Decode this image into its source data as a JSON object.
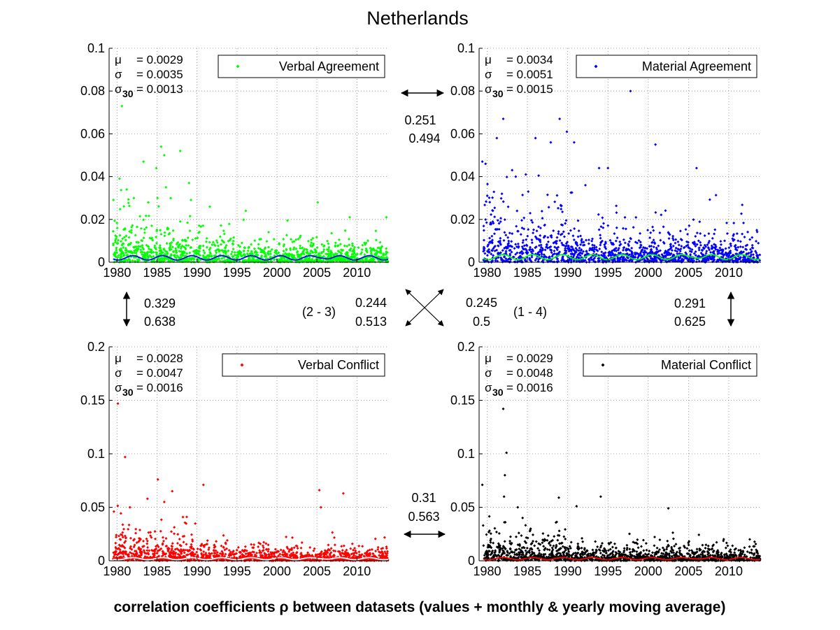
{
  "figure": {
    "title": "Netherlands",
    "caption": "correlation coefficients ρ between datasets (values + monthly & yearly moving average)"
  },
  "chart_data": [
    {
      "id": "verbal-agreement",
      "type": "scatter",
      "legend": "Verbal Agreement",
      "color": "#00ff00",
      "avg_color": "#0000ff",
      "ylim": [
        0,
        0.1
      ],
      "yticks": [
        "0",
        "0.02",
        "0.04",
        "0.06",
        "0.08",
        "0.1"
      ],
      "ytick_values": [
        0,
        0.02,
        0.04,
        0.06,
        0.08,
        0.1
      ],
      "xlim": [
        1979,
        2014
      ],
      "xticks": [
        "1980",
        "1985",
        "1990",
        "1995",
        "2000",
        "2005",
        "2010"
      ],
      "xtick_values": [
        1980,
        1985,
        1990,
        1995,
        2000,
        2005,
        2010
      ],
      "stats": {
        "mu_label": "μ",
        "mu": "= 0.0029",
        "sigma_label": "σ",
        "sigma": "= 0.0035",
        "sigma30_label": "σ",
        "sigma30_sub": "30",
        "sigma30": "= 0.0013"
      },
      "outliers": [
        [
          1980.6,
          0.073
        ],
        [
          1980.3,
          0.039
        ],
        [
          1981.2,
          0.034
        ],
        [
          1983.3,
          0.047
        ],
        [
          1984.9,
          0.044
        ],
        [
          1985.5,
          0.054
        ],
        [
          1985.9,
          0.05
        ],
        [
          1986.1,
          0.035
        ],
        [
          1987.9,
          0.052
        ],
        [
          1989.0,
          0.037
        ],
        [
          1982.1,
          0.03
        ],
        [
          1983.9,
          0.028
        ],
        [
          1986.7,
          0.03
        ],
        [
          1991.6,
          0.026
        ],
        [
          1996.1,
          0.024
        ],
        [
          2005.1,
          0.028
        ],
        [
          2009.1,
          0.021
        ],
        [
          2013.7,
          0.021
        ]
      ],
      "mean": 0.0029,
      "sigma": 0.0035
    },
    {
      "id": "material-agreement",
      "type": "scatter",
      "legend": "Material Agreement",
      "color": "#0000ff",
      "avg_color": "#00ff00",
      "ylim": [
        0,
        0.1
      ],
      "yticks": [
        "0",
        "0.02",
        "0.04",
        "0.06",
        "0.08",
        "0.1"
      ],
      "ytick_values": [
        0,
        0.02,
        0.04,
        0.06,
        0.08,
        0.1
      ],
      "xlim": [
        1979,
        2014
      ],
      "xticks": [
        "1980",
        "1985",
        "1990",
        "1995",
        "2000",
        "2005",
        "2010"
      ],
      "xtick_values": [
        1980,
        1985,
        1990,
        1995,
        2000,
        2005,
        2010
      ],
      "stats": {
        "mu_label": "μ",
        "mu": "= 0.0034",
        "sigma_label": "σ",
        "sigma": "= 0.0051",
        "sigma30_label": "σ",
        "sigma30_sub": "30",
        "sigma30": "= 0.0015"
      },
      "outliers": [
        [
          1997.8,
          0.08
        ],
        [
          1982.0,
          0.067
        ],
        [
          1989.0,
          0.067
        ],
        [
          1989.9,
          0.061
        ],
        [
          1981.2,
          0.058
        ],
        [
          1986.0,
          0.058
        ],
        [
          1987.9,
          0.056
        ],
        [
          1990.8,
          0.056
        ],
        [
          2000.9,
          0.055
        ],
        [
          1979.4,
          0.047
        ],
        [
          1979.8,
          0.046
        ],
        [
          1983.1,
          0.043
        ],
        [
          1984.8,
          0.041
        ],
        [
          1993.9,
          0.044
        ],
        [
          1995.0,
          0.044
        ],
        [
          2006.0,
          0.044
        ],
        [
          1992.2,
          0.036
        ],
        [
          1985.1,
          0.033
        ]
      ],
      "mean": 0.0034,
      "sigma": 0.0051
    },
    {
      "id": "verbal-conflict",
      "type": "scatter",
      "legend": "Verbal Conflict",
      "color": "#ff0000",
      "avg_color": "#ffffff",
      "ylim": [
        0,
        0.2
      ],
      "yticks": [
        "0",
        "0.05",
        "0.1",
        "0.15",
        "0.2"
      ],
      "ytick_values": [
        0,
        0.05,
        0.1,
        0.15,
        0.2
      ],
      "xlim": [
        1979,
        2014
      ],
      "xticks": [
        "1980",
        "1985",
        "1990",
        "1995",
        "2000",
        "2005",
        "2010"
      ],
      "xtick_values": [
        1980,
        1985,
        1990,
        1995,
        2000,
        2005,
        2010
      ],
      "stats": {
        "mu_label": "μ",
        "mu": "= 0.0028",
        "sigma_label": "σ",
        "sigma": "= 0.0047",
        "sigma30_label": "σ",
        "sigma30_sub": "30",
        "sigma30": "= 0.0016"
      },
      "outliers": [
        [
          1980.1,
          0.147
        ],
        [
          1981.0,
          0.097
        ],
        [
          1985.1,
          0.076
        ],
        [
          1986.9,
          0.065
        ],
        [
          1990.8,
          0.071
        ],
        [
          2005.3,
          0.066
        ],
        [
          2008.3,
          0.063
        ],
        [
          1983.8,
          0.058
        ],
        [
          1981.6,
          0.05
        ],
        [
          1979.6,
          0.046
        ],
        [
          1985.9,
          0.055
        ],
        [
          2005.5,
          0.05
        ]
      ],
      "mean": 0.0028,
      "sigma": 0.0047
    },
    {
      "id": "material-conflict",
      "type": "scatter",
      "legend": "Material Conflict",
      "color": "#000000",
      "avg_color": "#ff0000",
      "ylim": [
        0,
        0.2
      ],
      "yticks": [
        "0",
        "0.05",
        "0.1",
        "0.15",
        "0.2"
      ],
      "ytick_values": [
        0,
        0.05,
        0.1,
        0.15,
        0.2
      ],
      "xlim": [
        1979,
        2014
      ],
      "xticks": [
        "1980",
        "1985",
        "1990",
        "1995",
        "2000",
        "2005",
        "2010"
      ],
      "xtick_values": [
        1980,
        1985,
        1990,
        1995,
        2000,
        2005,
        2010
      ],
      "stats": {
        "mu_label": "μ",
        "mu": "= 0.0029",
        "sigma_label": "σ",
        "sigma": "= 0.0048",
        "sigma30_label": "σ",
        "sigma30_sub": "30",
        "sigma30": "= 0.0016"
      },
      "outliers": [
        [
          1982.0,
          0.142
        ],
        [
          1982.4,
          0.101
        ],
        [
          1982.2,
          0.08
        ],
        [
          1979.4,
          0.071
        ],
        [
          1982.1,
          0.06
        ],
        [
          1988.9,
          0.059
        ],
        [
          1994.1,
          0.06
        ],
        [
          1983.8,
          0.05
        ],
        [
          1991.1,
          0.051
        ],
        [
          2002.5,
          0.049
        ],
        [
          1984.4,
          0.04
        ],
        [
          1979.5,
          0.033
        ]
      ],
      "mean": 0.0029,
      "sigma": 0.0048
    }
  ],
  "correlations": {
    "top": {
      "rho": "0.251",
      "rho_avg": "0.494"
    },
    "left": {
      "rho": "0.329",
      "rho_avg": "0.638"
    },
    "right": {
      "rho": "0.291",
      "rho_avg": "0.625"
    },
    "diag_23": {
      "pair": "(2 - 3)",
      "rho": "0.244",
      "rho_avg": "0.513"
    },
    "diag_14": {
      "pair": "(1 - 4)",
      "rho": "0.245",
      "rho_avg": "0.5"
    },
    "bottom": {
      "rho": "0.31",
      "rho_avg": "0.563"
    }
  }
}
